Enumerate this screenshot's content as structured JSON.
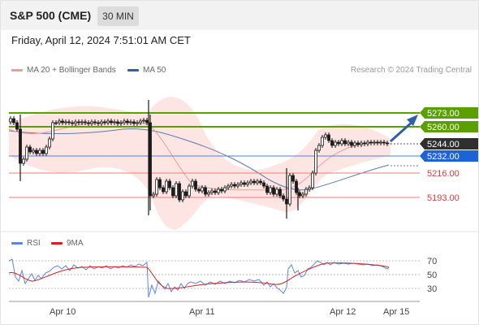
{
  "header": {
    "title": "S&P 500 (CME)",
    "timeframe": "30 MIN"
  },
  "datetime": "Friday, April 12, 2024 7:51:01 AM CET",
  "legend": {
    "ma20_label": "MA 20 + Bollinger Bands",
    "ma50_label": "MA 50",
    "credit": "Research © 2024 Trading Central",
    "rsi_label": "RSI",
    "ma9_label": "9MA"
  },
  "colors": {
    "resistance": "#5aa000",
    "support": "#1e62d8",
    "pivot_line": "#4d7fe3",
    "sub_level": "#f07a7a",
    "bollinger": "#fde0de",
    "ma20": "#f29a94",
    "ma50": "#5b7bb0",
    "current": "#2f2f2f",
    "rsi": "#5b86e0",
    "rsi_ma": "#d52020",
    "arrow": "#2f5fa8",
    "candle": "#1a1a1a"
  },
  "levels": {
    "r1": "5273.00",
    "r2": "5260.00",
    "current": "5244.00",
    "pivot": "5232.00",
    "s1": "5216.00",
    "s2": "5193.00"
  },
  "rsi_ticks": [
    "70",
    "50",
    "30"
  ],
  "x_ticks": [
    "Apr 10",
    "Apr 11",
    "Apr 12",
    "Apr 15"
  ]
}
